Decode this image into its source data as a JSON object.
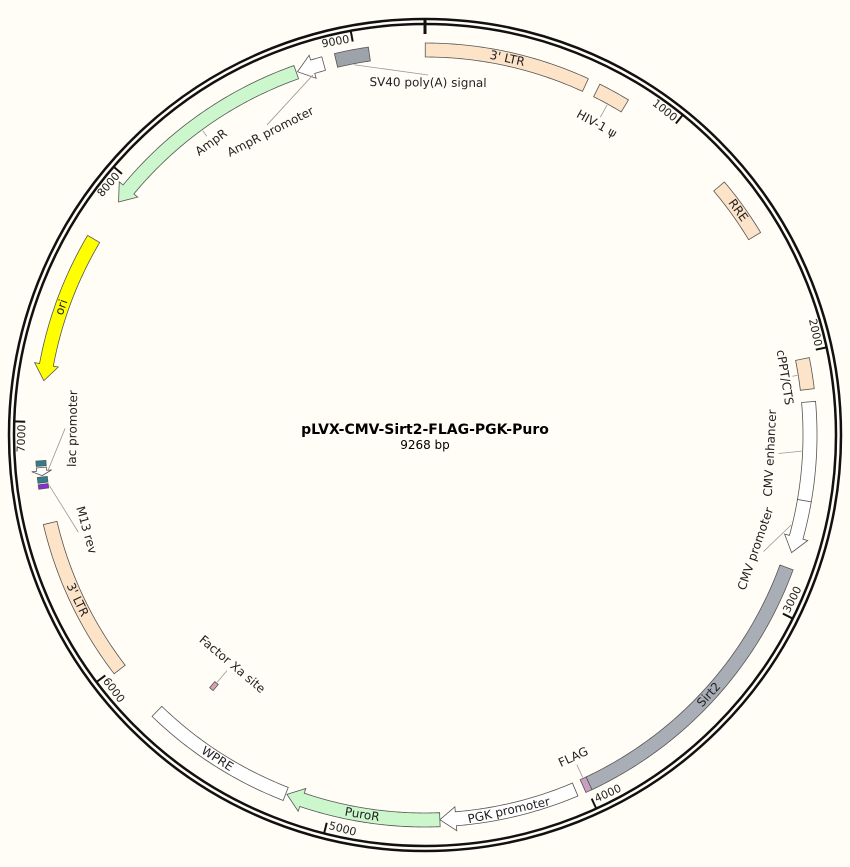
{
  "plasmid": {
    "name": "pLVX-CMV-Sirt2-FLAG-PGK-Puro",
    "length_label": "9268 bp",
    "length": 9268
  },
  "ticks": [
    {
      "bp": 1000,
      "label": "1000"
    },
    {
      "bp": 2000,
      "label": "2000"
    },
    {
      "bp": 3000,
      "label": "3000"
    },
    {
      "bp": 4000,
      "label": "4000"
    },
    {
      "bp": 5000,
      "label": "5000"
    },
    {
      "bp": 6000,
      "label": "6000"
    },
    {
      "bp": 7000,
      "label": "7000"
    },
    {
      "bp": 8000,
      "label": "8000"
    },
    {
      "bp": 9000,
      "label": "9000"
    }
  ],
  "features": [
    {
      "label": "3' LTR",
      "start": 1,
      "end": 634,
      "color": "#fde3c8",
      "direction": "none",
      "label_mode": "on",
      "track": "main"
    },
    {
      "label": "HIV-1 ψ",
      "start": 682,
      "end": 805,
      "color": "#fde3c8",
      "direction": "none",
      "label_mode": "inside",
      "track": "main"
    },
    {
      "label": "RRE",
      "start": 1282,
      "end": 1516,
      "color": "#fde3c8",
      "direction": "none",
      "label_mode": "on",
      "track": "main"
    },
    {
      "label": "cPPT/CTS",
      "start": 2024,
      "end": 2142,
      "color": "#fde3c8",
      "direction": "none",
      "label_mode": "inside",
      "track": "main"
    },
    {
      "label": "CMV enhancer",
      "start": 2190,
      "end": 2570,
      "color": "#ffffff",
      "direction": "none",
      "label_mode": "inside",
      "track": "main"
    },
    {
      "label": "CMV promoter",
      "start": 2570,
      "end": 2775,
      "color": "#ffffff",
      "direction": "forward",
      "label_mode": "inside",
      "track": "main"
    },
    {
      "label": "Sirt2",
      "start": 2835,
      "end": 3985,
      "color": "#a9aeb6",
      "direction": "none",
      "label_mode": "on",
      "track": "main"
    },
    {
      "label": "FLAG",
      "start": 3985,
      "end": 4010,
      "color": "#c8a0c0",
      "direction": "none",
      "label_mode": "inside",
      "track": "main"
    },
    {
      "label": "PGK promoter",
      "start": 4043,
      "end": 4577,
      "color": "#ffffff",
      "direction": "forward",
      "label_mode": "on",
      "track": "main"
    },
    {
      "label": "PuroR",
      "start": 4577,
      "end": 5175,
      "color": "#ccf7cc",
      "direction": "forward",
      "label_mode": "on",
      "track": "main"
    },
    {
      "label": "WPRE",
      "start": 5180,
      "end": 5770,
      "color": "#ffffff",
      "direction": "none",
      "label_mode": "on",
      "track": "main"
    },
    {
      "label": "Factor Xa site",
      "start": 5655,
      "end": 5675,
      "color": "#d9a3b4",
      "direction": "none",
      "label_mode": "inside",
      "track": "inner"
    },
    {
      "label": "3' LTR",
      "start": 5985,
      "end": 6611,
      "color": "#fde3c8",
      "direction": "none",
      "label_mode": "on",
      "track": "main"
    },
    {
      "label": "M13 rev",
      "start": 6745,
      "end": 6762,
      "color": "#8a2be2",
      "direction": "none",
      "label_mode": "inside",
      "track": "small"
    },
    {
      "label": "",
      "start": 6768,
      "end": 6790,
      "color": "#2f7f92",
      "direction": "none",
      "label_mode": "none",
      "track": "small"
    },
    {
      "label": "lac promoter",
      "start": 6795,
      "end": 6826,
      "color": "#ffffff",
      "direction": "reverse",
      "label_mode": "inside",
      "track": "small"
    },
    {
      "label": "",
      "start": 6832,
      "end": 6852,
      "color": "#2f7f92",
      "direction": "none",
      "label_mode": "none",
      "track": "small"
    },
    {
      "label": "ori",
      "start": 7160,
      "end": 7739,
      "color": "#ffff00",
      "direction": "reverse",
      "label_mode": "on",
      "track": "main"
    },
    {
      "label": "AmpR",
      "start": 7910,
      "end": 8765,
      "color": "#ccf7cc",
      "direction": "reverse",
      "label_mode": "inside",
      "track": "main"
    },
    {
      "label": "AmpR promoter",
      "start": 8770,
      "end": 8875,
      "color": "#ffffff",
      "direction": "reverse",
      "label_mode": "inside",
      "track": "main"
    },
    {
      "label": "SV40 poly(A) signal",
      "start": 8924,
      "end": 9054,
      "color": "#9ea3aa",
      "direction": "none",
      "label_mode": "inside",
      "track": "main"
    }
  ]
}
